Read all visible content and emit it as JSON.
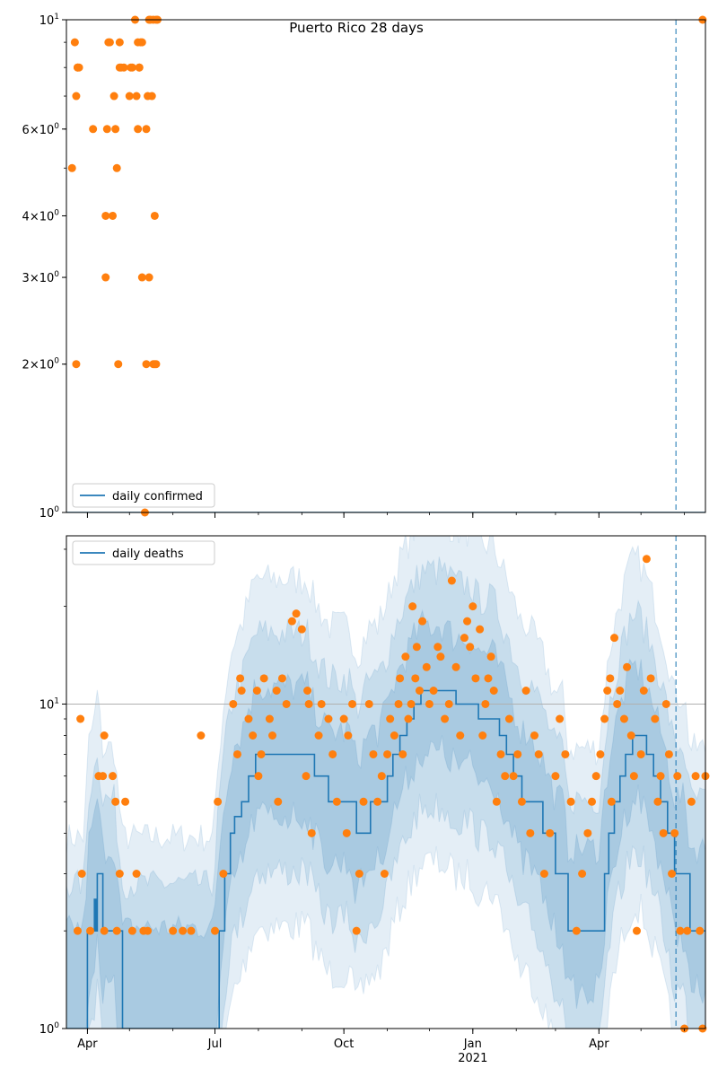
{
  "title": "Puerto Rico 28 days",
  "colors": {
    "line": "#1f77b4",
    "points": "#ff7f0e",
    "band": "#1f77b4",
    "vline": "#1f77b4",
    "axis": "#000000",
    "grid": "#b0b0b0"
  },
  "x_ticks": [
    {
      "date": "2020-04-01",
      "label": "Apr"
    },
    {
      "date": "2020-07-01",
      "label": "Jul"
    },
    {
      "date": "2020-10-01",
      "label": "Oct"
    },
    {
      "date": "2021-01-01",
      "label": "Jan",
      "sublabel": "2021"
    },
    {
      "date": "2021-04-01",
      "label": "Apr"
    }
  ],
  "chart_data": [
    {
      "type": "scatter",
      "legend": "daily confirmed",
      "legend_position": "lower left",
      "yscale": "log",
      "ylim": [
        1,
        10
      ],
      "xlim": [
        "2020-03-17",
        "2021-06-16"
      ],
      "vline": "2021-05-26",
      "y_ticks": [
        {
          "value": 1,
          "label": "10^0"
        },
        {
          "value": 2,
          "label": "2×10^0"
        },
        {
          "value": 3,
          "label": "3×10^0"
        },
        {
          "value": 4,
          "label": "4×10^0"
        },
        {
          "value": 6,
          "label": "6×10^0"
        },
        {
          "value": 10,
          "label": "10^1"
        }
      ],
      "series": [
        {
          "name": "daily confirmed",
          "kind": "line",
          "x": [
            "2020-03-17",
            "2021-06-16"
          ],
          "y": [
            1,
            1
          ]
        },
        {
          "kind": "points",
          "x": [
            "2020-03-21",
            "2020-03-23",
            "2020-03-24",
            "2020-03-24",
            "2020-03-25",
            "2020-03-25",
            "2020-03-26",
            "2020-04-05",
            "2020-04-14",
            "2020-04-14",
            "2020-04-15",
            "2020-04-16",
            "2020-04-17",
            "2020-04-19",
            "2020-04-20",
            "2020-04-21",
            "2020-04-22",
            "2020-04-23",
            "2020-04-24",
            "2020-04-24",
            "2020-04-25",
            "2020-04-27",
            "2020-05-01",
            "2020-05-02",
            "2020-05-03",
            "2020-05-05",
            "2020-05-06",
            "2020-05-07",
            "2020-05-07",
            "2020-05-08",
            "2020-05-08",
            "2020-05-09",
            "2020-05-10",
            "2020-05-10",
            "2020-05-12",
            "2020-05-13",
            "2020-05-13",
            "2020-05-14",
            "2020-05-15",
            "2020-05-15",
            "2020-05-16",
            "2020-05-17",
            "2020-05-18",
            "2020-05-18",
            "2020-05-19",
            "2020-05-19",
            "2020-05-20",
            "2020-05-20",
            "2020-05-21",
            "2021-06-14"
          ],
          "y": [
            5,
            9,
            7,
            2,
            8,
            8,
            8,
            6,
            4,
            3,
            6,
            9,
            9,
            4,
            7,
            6,
            5,
            2,
            8,
            9,
            8,
            8,
            7,
            8,
            8,
            10,
            7,
            6,
            9,
            8,
            8,
            9,
            3,
            9,
            1,
            6,
            2,
            7,
            3,
            10,
            10,
            7,
            2,
            10,
            4,
            2,
            10,
            2,
            10,
            10
          ]
        }
      ]
    },
    {
      "type": "scatter",
      "legend": "daily deaths",
      "legend_position": "upper left",
      "yscale": "log",
      "ylim": [
        1,
        33
      ],
      "xlim": [
        "2020-03-17",
        "2021-06-16"
      ],
      "vline": "2021-05-26",
      "hline": 10,
      "y_ticks": [
        {
          "value": 1,
          "label": "10^0"
        },
        {
          "value": 10,
          "label": "10^1"
        }
      ],
      "series": [
        {
          "name": "daily deaths",
          "kind": "line",
          "x": [
            "2020-03-17",
            "2020-03-30",
            "2020-04-01",
            "2020-04-06",
            "2020-04-07",
            "2020-04-08",
            "2020-04-12",
            "2020-04-20",
            "2020-04-26",
            "2020-05-01",
            "2020-05-10",
            "2020-06-01",
            "2020-06-30",
            "2020-07-04",
            "2020-07-08",
            "2020-07-12",
            "2020-07-15",
            "2020-07-20",
            "2020-07-25",
            "2020-07-30",
            "2020-08-05",
            "2020-08-20",
            "2020-09-05",
            "2020-09-10",
            "2020-09-20",
            "2020-10-01",
            "2020-10-05",
            "2020-10-10",
            "2020-10-20",
            "2020-10-25",
            "2020-11-01",
            "2020-11-05",
            "2020-11-10",
            "2020-11-15",
            "2020-11-20",
            "2020-11-25",
            "2020-12-01",
            "2020-12-10",
            "2020-12-20",
            "2020-12-30",
            "2021-01-05",
            "2021-01-15",
            "2021-01-20",
            "2021-01-25",
            "2021-01-30",
            "2021-02-05",
            "2021-02-10",
            "2021-02-20",
            "2021-03-01",
            "2021-03-06",
            "2021-03-10",
            "2021-03-20",
            "2021-03-26",
            "2021-04-01",
            "2021-04-05",
            "2021-04-08",
            "2021-04-12",
            "2021-04-16",
            "2021-04-20",
            "2021-04-25",
            "2021-04-30",
            "2021-05-05",
            "2021-05-10",
            "2021-05-15",
            "2021-05-20",
            "2021-05-25",
            "2021-06-01",
            "2021-06-05",
            "2021-06-10",
            "2021-06-16"
          ],
          "y": [
            1,
            1,
            2,
            2.5,
            2,
            3,
            2,
            2,
            1,
            1,
            1,
            1,
            1,
            2,
            3,
            4,
            4.5,
            5,
            6,
            7,
            7,
            7,
            7,
            6,
            5,
            5,
            5,
            4,
            5,
            5,
            6,
            7,
            8,
            9,
            10,
            11,
            11,
            11,
            10,
            10,
            9,
            9,
            8,
            7,
            6,
            5,
            5,
            4,
            3,
            3,
            2,
            2,
            2,
            2,
            3,
            4,
            5,
            6,
            7,
            8,
            8,
            7,
            6,
            5,
            4,
            3,
            3,
            2,
            2,
            2
          ]
        },
        {
          "kind": "points",
          "x": [
            "2020-03-25",
            "2020-03-27",
            "2020-03-28",
            "2020-04-03",
            "2020-04-09",
            "2020-04-12",
            "2020-04-13",
            "2020-04-13",
            "2020-04-19",
            "2020-04-21",
            "2020-04-22",
            "2020-04-24",
            "2020-04-28",
            "2020-05-03",
            "2020-05-06",
            "2020-05-11",
            "2020-05-14",
            "2020-06-01",
            "2020-06-08",
            "2020-06-14",
            "2020-06-21",
            "2020-07-01",
            "2020-07-03",
            "2020-07-07",
            "2020-07-14",
            "2020-07-17",
            "2020-07-19",
            "2020-07-20",
            "2020-07-25",
            "2020-07-28",
            "2020-07-31",
            "2020-08-01",
            "2020-08-03",
            "2020-08-05",
            "2020-08-09",
            "2020-08-11",
            "2020-08-14",
            "2020-08-15",
            "2020-08-18",
            "2020-08-21",
            "2020-08-25",
            "2020-08-28",
            "2020-09-01",
            "2020-09-04",
            "2020-09-05",
            "2020-09-06",
            "2020-09-08",
            "2020-09-13",
            "2020-09-15",
            "2020-09-20",
            "2020-09-23",
            "2020-09-26",
            "2020-10-01",
            "2020-10-03",
            "2020-10-04",
            "2020-10-07",
            "2020-10-10",
            "2020-10-12",
            "2020-10-15",
            "2020-10-19",
            "2020-10-22",
            "2020-10-25",
            "2020-10-28",
            "2020-10-30",
            "2020-11-01",
            "2020-11-03",
            "2020-11-06",
            "2020-11-09",
            "2020-11-10",
            "2020-11-12",
            "2020-11-14",
            "2020-11-16",
            "2020-11-18",
            "2020-11-19",
            "2020-11-21",
            "2020-11-22",
            "2020-11-24",
            "2020-11-26",
            "2020-11-29",
            "2020-12-01",
            "2020-12-04",
            "2020-12-07",
            "2020-12-09",
            "2020-12-12",
            "2020-12-15",
            "2020-12-17",
            "2020-12-20",
            "2020-12-23",
            "2020-12-26",
            "2020-12-28",
            "2020-12-30",
            "2021-01-01",
            "2021-01-03",
            "2021-01-06",
            "2021-01-08",
            "2021-01-10",
            "2021-01-12",
            "2021-01-14",
            "2021-01-16",
            "2021-01-18",
            "2021-01-21",
            "2021-01-24",
            "2021-01-27",
            "2021-01-30",
            "2021-02-02",
            "2021-02-05",
            "2021-02-08",
            "2021-02-11",
            "2021-02-14",
            "2021-02-17",
            "2021-02-21",
            "2021-02-25",
            "2021-03-01",
            "2021-03-04",
            "2021-03-08",
            "2021-03-12",
            "2021-03-16",
            "2021-03-20",
            "2021-03-24",
            "2021-03-27",
            "2021-03-30",
            "2021-04-02",
            "2021-04-05",
            "2021-04-07",
            "2021-04-09",
            "2021-04-10",
            "2021-04-12",
            "2021-04-14",
            "2021-04-16",
            "2021-04-19",
            "2021-04-21",
            "2021-04-24",
            "2021-04-26",
            "2021-04-28",
            "2021-05-01",
            "2021-05-03",
            "2021-05-05",
            "2021-05-08",
            "2021-05-11",
            "2021-05-13",
            "2021-05-15",
            "2021-05-17",
            "2021-05-19",
            "2021-05-21",
            "2021-05-23",
            "2021-05-25",
            "2021-05-27",
            "2021-05-29",
            "2021-06-01",
            "2021-06-03",
            "2021-06-06",
            "2021-06-09",
            "2021-06-12",
            "2021-06-14",
            "2021-06-16"
          ],
          "y": [
            2,
            9,
            3,
            2,
            6,
            6,
            2,
            8,
            6,
            5,
            2,
            3,
            5,
            2,
            3,
            2,
            2,
            2,
            2,
            2,
            8,
            2,
            5,
            3,
            10,
            7,
            12,
            11,
            9,
            8,
            11,
            6,
            7,
            12,
            9,
            8,
            11,
            5,
            12,
            10,
            18,
            19,
            17,
            6,
            11,
            10,
            4,
            8,
            10,
            9,
            7,
            5,
            9,
            4,
            8,
            10,
            2,
            3,
            5,
            10,
            7,
            5,
            6,
            3,
            7,
            9,
            8,
            10,
            12,
            7,
            14,
            9,
            10,
            20,
            12,
            15,
            11,
            18,
            13,
            10,
            11,
            15,
            14,
            9,
            10,
            24,
            13,
            8,
            16,
            18,
            15,
            20,
            12,
            17,
            8,
            10,
            12,
            14,
            11,
            5,
            7,
            6,
            9,
            6,
            7,
            5,
            11,
            4,
            8,
            7,
            3,
            4,
            6,
            9,
            7,
            5,
            2,
            3,
            4,
            5,
            6,
            7,
            9,
            11,
            12,
            5,
            16,
            10,
            11,
            9,
            13,
            8,
            6,
            2,
            7,
            11,
            28,
            12,
            9,
            5,
            6,
            4,
            10,
            7,
            3,
            4,
            6,
            2,
            1,
            2,
            5,
            6,
            2,
            1,
            6
          ]
        }
      ]
    }
  ]
}
